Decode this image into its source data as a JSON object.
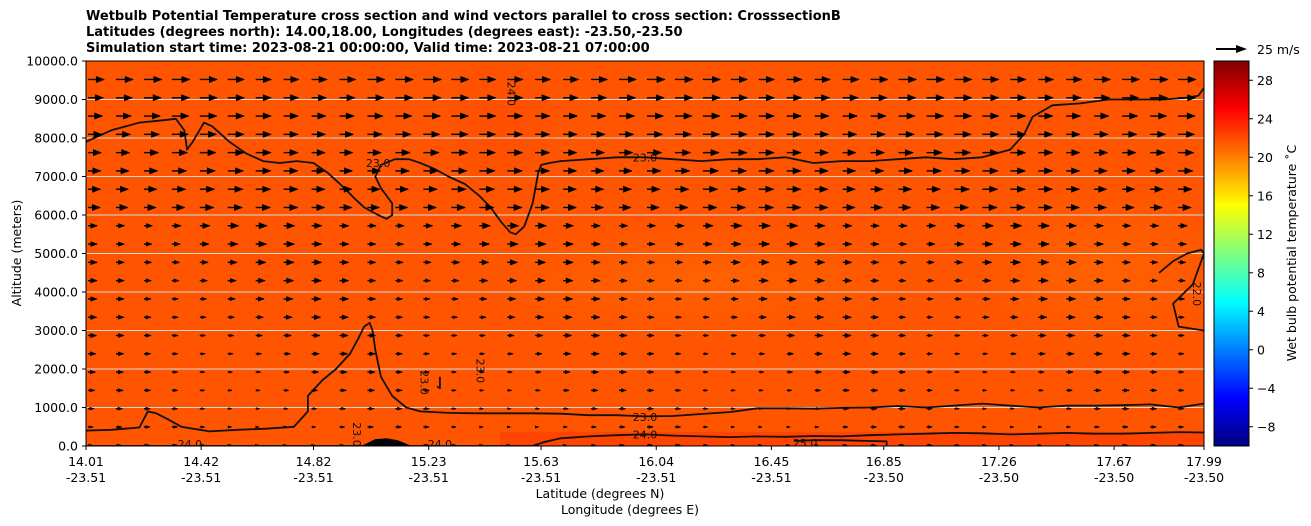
{
  "chart_data": {
    "type": "heatmap",
    "title_lines": [
      "Wetbulb Potential Temperature cross section and wind vectors parallel to cross section: CrosssectionB",
      "Latitudes (degrees north): 14.00,18.00, Longitudes (degrees east): -23.50,-23.50",
      "Simulation start time: 2023-08-21 00:00:00, Valid time: 2023-08-21 07:00:00"
    ],
    "xlabel": "Latitude (degrees N)",
    "xlabel2": "Longitude (degrees E)",
    "ylabel": "Altitude (meters)",
    "xlim": [
      14.01,
      17.99
    ],
    "ylim": [
      0,
      10000
    ],
    "x_ticks": [
      {
        "lat": "14.01",
        "lon": "-23.51",
        "value": 14.01
      },
      {
        "lat": "14.42",
        "lon": "-23.51",
        "value": 14.42
      },
      {
        "lat": "14.82",
        "lon": "-23.51",
        "value": 14.82
      },
      {
        "lat": "15.23",
        "lon": "-23.51",
        "value": 15.23
      },
      {
        "lat": "15.63",
        "lon": "-23.51",
        "value": 15.63
      },
      {
        "lat": "16.04",
        "lon": "-23.51",
        "value": 16.04
      },
      {
        "lat": "16.45",
        "lon": "-23.51",
        "value": 16.45
      },
      {
        "lat": "16.85",
        "lon": "-23.50",
        "value": 16.85
      },
      {
        "lat": "17.26",
        "lon": "-23.50",
        "value": 17.26
      },
      {
        "lat": "17.67",
        "lon": "-23.50",
        "value": 17.67
      },
      {
        "lat": "17.99",
        "lon": "-23.50",
        "value": 17.99
      }
    ],
    "y_ticks": [
      {
        "label": "0.0",
        "value": 0
      },
      {
        "label": "1000.0",
        "value": 1000
      },
      {
        "label": "2000.0",
        "value": 2000
      },
      {
        "label": "3000.0",
        "value": 3000
      },
      {
        "label": "4000.0",
        "value": 4000
      },
      {
        "label": "5000.0",
        "value": 5000
      },
      {
        "label": "6000.0",
        "value": 6000
      },
      {
        "label": "7000.0",
        "value": 7000
      },
      {
        "label": "8000.0",
        "value": 8000
      },
      {
        "label": "9000.0",
        "value": 9000
      },
      {
        "label": "10000.0",
        "value": 10000
      }
    ],
    "grid": "horizontal",
    "colorbar": {
      "label": "Wet bulb potential temperature ˚C",
      "range": [
        -10,
        30
      ],
      "ticks": [
        {
          "label": "−8",
          "value": -8
        },
        {
          "label": "−4",
          "value": -4
        },
        {
          "label": "0",
          "value": 0
        },
        {
          "label": "4",
          "value": 4
        },
        {
          "label": "8",
          "value": 8
        },
        {
          "label": "12",
          "value": 12
        },
        {
          "label": "16",
          "value": 16
        },
        {
          "label": "20",
          "value": 20
        },
        {
          "label": "24",
          "value": 24
        },
        {
          "label": "28",
          "value": 28
        }
      ],
      "colormap": [
        "#00007f",
        "#0000ff",
        "#007fff",
        "#00ffff",
        "#7fff7f",
        "#ffff00",
        "#ff7f00",
        "#ff0000",
        "#7f0000"
      ]
    },
    "quiver_key": {
      "label": "25 m/s",
      "speed": 25
    },
    "contour_labels": [
      {
        "text": "23.0",
        "x": 15.05,
        "y": 7350
      },
      {
        "text": "23.0",
        "x": 16.0,
        "y": 7500
      },
      {
        "text": "24.0",
        "x": 15.51,
        "y": 9150,
        "vertical": true
      },
      {
        "text": "22.0",
        "x": 17.95,
        "y": 3950,
        "vertical": true
      },
      {
        "text": "23.0",
        "x": 15.2,
        "y": 1650,
        "vertical": true
      },
      {
        "text": "23.0",
        "x": 15.4,
        "y": 1950,
        "vertical": true
      },
      {
        "text": "23.0",
        "x": 16.0,
        "y": 750
      },
      {
        "text": "24.0",
        "x": 16.0,
        "y": 300
      },
      {
        "text": "24.0",
        "x": 14.38,
        "y": 50
      },
      {
        "text": "24.0",
        "x": 15.27,
        "y": 50
      },
      {
        "text": "25.0",
        "x": 16.57,
        "y": 80
      },
      {
        "text": "23.0",
        "x": 14.96,
        "y": 300,
        "vertical": true
      }
    ],
    "contours": [
      {
        "level": 23,
        "x": [
          14.01,
          14.1,
          14.2,
          14.27,
          14.33,
          14.36,
          14.37,
          14.39,
          14.43,
          14.46,
          14.52,
          14.58,
          14.64,
          14.7,
          14.76,
          14.82,
          14.87,
          14.93,
          14.97,
          15.0,
          15.05,
          15.08,
          15.1,
          15.1,
          15.06,
          15.04,
          15.06,
          15.11,
          15.16,
          15.2,
          15.25,
          15.3,
          15.36,
          15.41,
          15.45,
          15.49,
          15.52,
          15.54,
          15.57,
          15.6,
          15.62,
          15.63,
          15.66,
          15.7,
          15.8,
          15.9,
          16.0,
          16.1,
          16.2,
          16.3,
          16.4,
          16.5,
          16.6,
          16.7,
          16.8,
          16.9,
          17.0,
          17.1,
          17.2,
          17.3,
          17.35,
          17.38,
          17.45,
          17.55,
          17.65,
          17.75,
          17.85,
          17.93,
          17.97,
          17.99
        ],
        "y": [
          7900,
          8200,
          8400,
          8450,
          8500,
          8200,
          7700,
          7900,
          8400,
          8300,
          7900,
          7600,
          7400,
          7350,
          7400,
          7350,
          7100,
          6700,
          6400,
          6200,
          6000,
          5900,
          6000,
          6300,
          6700,
          7000,
          7300,
          7450,
          7450,
          7350,
          7200,
          7000,
          6800,
          6500,
          6200,
          5800,
          5550,
          5500,
          5700,
          6300,
          7100,
          7300,
          7350,
          7400,
          7450,
          7500,
          7500,
          7450,
          7400,
          7450,
          7450,
          7500,
          7350,
          7400,
          7400,
          7450,
          7500,
          7450,
          7500,
          7700,
          8100,
          8550,
          8850,
          8900,
          9000,
          9000,
          9000,
          9050,
          9100,
          9300
        ]
      },
      {
        "level": 23,
        "x": [
          14.01,
          14.1,
          14.2,
          14.23,
          14.26,
          14.3,
          14.35,
          14.45,
          14.55,
          14.65,
          14.75,
          14.8,
          14.8,
          14.85,
          14.9,
          14.95,
          14.98,
          15.0,
          15.02,
          15.03,
          15.04,
          15.06,
          15.1,
          15.15,
          15.2,
          15.3,
          15.4,
          15.5,
          15.6,
          15.7,
          15.8,
          15.9,
          16.0,
          16.1,
          16.2,
          16.3,
          16.4,
          16.5,
          16.6,
          16.7,
          16.8,
          16.9,
          17.0,
          17.1,
          17.2,
          17.3,
          17.4,
          17.5,
          17.6,
          17.7,
          17.8,
          17.9,
          17.99
        ],
        "y": [
          400,
          420,
          480,
          900,
          850,
          700,
          500,
          380,
          420,
          450,
          500,
          900,
          1300,
          1700,
          2000,
          2400,
          2800,
          3100,
          3200,
          3000,
          2500,
          1800,
          1300,
          1000,
          900,
          860,
          850,
          850,
          850,
          840,
          800,
          800,
          770,
          780,
          830,
          880,
          980,
          980,
          970,
          990,
          1000,
          1040,
          1000,
          1050,
          1100,
          1050,
          1000,
          1050,
          1050,
          1060,
          1080,
          1000,
          1100
        ]
      },
      {
        "level": 24,
        "x": [
          14.01,
          14.2,
          14.4,
          14.6,
          14.8,
          15.0,
          15.2,
          15.4,
          15.6,
          15.64,
          15.7,
          15.8,
          15.9,
          16.0,
          16.1,
          16.2,
          16.3,
          16.4,
          16.5,
          16.6,
          16.7,
          16.8,
          16.9,
          17.0,
          17.1,
          17.2,
          17.3,
          17.4,
          17.5,
          17.6,
          17.7,
          17.8,
          17.9,
          17.99
        ],
        "y": [
          0,
          0,
          0,
          0,
          0,
          0,
          0,
          0,
          0,
          100,
          200,
          250,
          280,
          300,
          270,
          250,
          230,
          250,
          240,
          260,
          250,
          280,
          300,
          320,
          340,
          330,
          300,
          320,
          340,
          320,
          320,
          340,
          360,
          350
        ]
      },
      {
        "level": 25,
        "x": [
          16.53,
          16.6,
          16.7,
          16.8,
          16.86,
          16.86
        ],
        "y": [
          130,
          150,
          150,
          130,
          120,
          0
        ]
      },
      {
        "level": 22,
        "x": [
          17.83,
          17.88,
          17.93,
          17.98,
          17.99,
          17.95,
          17.88,
          17.9,
          17.99
        ],
        "y": [
          4500,
          4800,
          5000,
          5100,
          5000,
          4200,
          3700,
          3100,
          3000
        ]
      },
      {
        "level": 23,
        "x": [
          15.27,
          15.27,
          15.26
        ],
        "y": [
          1800,
          1500,
          1550
        ]
      }
    ],
    "terrain": {
      "x": [
        14.99,
        15.04,
        15.08,
        15.12,
        15.17
      ],
      "y": [
        0,
        180,
        200,
        150,
        0
      ]
    }
  }
}
